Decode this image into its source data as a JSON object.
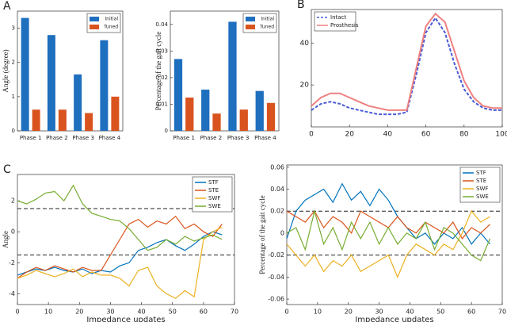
{
  "chart_data": [
    {
      "type": "bar",
      "panel_label": "A",
      "ylabel": "Angle (degree)",
      "categories": [
        "Phase 1",
        "Phase 2",
        "Phase 3",
        "Phase 4"
      ],
      "series": [
        {
          "name": "Initial",
          "color": "#1f6fbf",
          "values": [
            3.3,
            2.8,
            1.65,
            2.65
          ]
        },
        {
          "name": "Tuned",
          "color": "#d9531e",
          "values": [
            0.62,
            0.62,
            0.52,
            1.0
          ]
        }
      ],
      "ylim": [
        0,
        3.5
      ],
      "yticks": [
        0,
        1,
        2,
        3
      ],
      "legend": "top-right"
    },
    {
      "type": "bar",
      "ylabel": "Percentage of the gait cycle",
      "categories": [
        "Phase 1",
        "Phase 2",
        "Phase 3",
        "Phase 4"
      ],
      "series": [
        {
          "name": "Initial",
          "color": "#1f6fbf",
          "values": [
            0.027,
            0.0155,
            0.041,
            0.015
          ]
        },
        {
          "name": "Tuned",
          "color": "#d9531e",
          "values": [
            0.0125,
            0.0065,
            0.008,
            0.0105
          ]
        }
      ],
      "ylim": [
        0,
        0.045
      ],
      "yticks": [
        0,
        0.01,
        0.02,
        0.03,
        0.04
      ],
      "legend": "top-right"
    },
    {
      "type": "line",
      "panel_label": "B",
      "x": [
        0,
        5,
        10,
        15,
        20,
        25,
        30,
        35,
        40,
        45,
        50,
        55,
        60,
        65,
        70,
        75,
        80,
        85,
        90,
        95,
        100
      ],
      "series": [
        {
          "name": "Intact",
          "color": "#4a5bd4",
          "dashed": true,
          "values": [
            8,
            11,
            12,
            11,
            9,
            8,
            7,
            6,
            6,
            6,
            7,
            25,
            45,
            52,
            45,
            30,
            18,
            12,
            9,
            8,
            8
          ]
        },
        {
          "name": "Prosthesis",
          "color": "#f08080",
          "values": [
            10,
            14,
            16,
            16,
            14,
            12,
            10,
            9,
            8,
            8,
            8,
            28,
            48,
            54,
            50,
            36,
            22,
            14,
            10,
            9,
            9
          ]
        }
      ],
      "xlim": [
        0,
        100
      ],
      "xticks": [
        0,
        20,
        40,
        60,
        80,
        100
      ],
      "ylim": [
        0,
        56
      ],
      "yticks": [
        20,
        40
      ],
      "legend": "top-left"
    },
    {
      "type": "line",
      "panel_label": "C",
      "xlabel": "Impedance updates",
      "ylabel": "Angle",
      "x": [
        0,
        3,
        6,
        9,
        12,
        15,
        18,
        21,
        24,
        27,
        30,
        33,
        36,
        39,
        42,
        45,
        48,
        51,
        54,
        57,
        60,
        63,
        66
      ],
      "series": [
        {
          "name": "STF",
          "color": "#0072bd",
          "values": [
            -2.8,
            -2.6,
            -2.4,
            -2.5,
            -2.3,
            -2.5,
            -2.6,
            -2.4,
            -2.7,
            -2.5,
            -2.6,
            -2.2,
            -2.0,
            -1.2,
            -1.0,
            -0.7,
            -0.5,
            -0.9,
            -1.2,
            -0.8,
            -0.3,
            0.0,
            -0.2
          ]
        },
        {
          "name": "STE",
          "color": "#d95319",
          "values": [
            -3,
            -2.6,
            -2.3,
            -2.5,
            -2.2,
            -2.4,
            -2.6,
            -2.3,
            -2.5,
            -2.5,
            -1.5,
            -0.5,
            0.5,
            0.8,
            0.3,
            0.7,
            0.5,
            1.0,
            0.2,
            0.5,
            0.0,
            -0.3,
            0.5
          ]
        },
        {
          "name": "SWF",
          "color": "#edb120",
          "values": [
            -3.0,
            -2.8,
            -2.5,
            -2.7,
            -2.9,
            -2.7,
            -2.4,
            -2.9,
            -2.6,
            -2.8,
            -2.8,
            -3.0,
            -3.5,
            -2.5,
            -2.3,
            -3.5,
            -4.0,
            -4.3,
            -3.8,
            -4.2,
            -0.5,
            0.0,
            0.3
          ]
        },
        {
          "name": "SWE",
          "color": "#77ac30",
          "values": [
            2.0,
            1.8,
            2.1,
            2.5,
            2.6,
            2.0,
            3.0,
            1.8,
            1.2,
            1.0,
            0.8,
            0.7,
            0.2,
            -0.5,
            -1.2,
            -1.0,
            -0.5,
            -0.8,
            -0.3,
            -0.6,
            -0.4,
            -0.2,
            -0.5
          ]
        }
      ],
      "hlines": [
        1.5,
        -1.5
      ],
      "xlim": [
        0,
        70
      ],
      "xticks": [
        0,
        10,
        20,
        30,
        40,
        50,
        60,
        70
      ],
      "ylim": [
        -4.7,
        3.7
      ],
      "yticks": [
        -4,
        -2,
        0,
        2
      ],
      "legend": "top-right"
    },
    {
      "type": "line",
      "xlabel": "Impedance updates",
      "ylabel": "Percentage of the gait cycle",
      "x": [
        0,
        3,
        6,
        9,
        12,
        15,
        18,
        21,
        24,
        27,
        30,
        33,
        36,
        39,
        42,
        45,
        48,
        51,
        54,
        57,
        60,
        63,
        66
      ],
      "series": [
        {
          "name": "STF",
          "color": "#0072bd",
          "values": [
            -0.005,
            0.02,
            0.03,
            0.035,
            0.04,
            0.028,
            0.045,
            0.03,
            0.038,
            0.025,
            0.04,
            0.03,
            0.015,
            0.005,
            -0.005,
            0.0,
            -0.01,
            0.0,
            -0.005,
            0.005,
            -0.01,
            0.0,
            -0.01
          ]
        },
        {
          "name": "STE",
          "color": "#d95319",
          "values": [
            0.02,
            0.015,
            0.01,
            0.02,
            0.005,
            0.015,
            0.01,
            0.0,
            0.02,
            0.015,
            0.01,
            0.005,
            0.015,
            0.005,
            0.0,
            0.01,
            0.005,
            0.0,
            0.01,
            -0.005,
            0.005,
            0.0,
            0.008
          ]
        },
        {
          "name": "SWF",
          "color": "#edb120",
          "values": [
            -0.01,
            -0.02,
            -0.03,
            -0.02,
            -0.035,
            -0.025,
            -0.03,
            -0.02,
            -0.035,
            -0.03,
            -0.025,
            -0.02,
            -0.04,
            -0.02,
            -0.01,
            -0.015,
            -0.02,
            -0.01,
            -0.015,
            0.0,
            0.02,
            0.01,
            0.015
          ]
        },
        {
          "name": "SWE",
          "color": "#77ac30",
          "values": [
            0.0,
            0.005,
            -0.015,
            0.02,
            -0.01,
            0.005,
            -0.015,
            0.01,
            -0.005,
            0.01,
            -0.01,
            0.005,
            -0.01,
            0.0,
            -0.005,
            0.01,
            -0.015,
            0.005,
            0.0,
            -0.01,
            -0.02,
            -0.025,
            -0.005
          ]
        }
      ],
      "hlines": [
        0.02,
        -0.02
      ],
      "xlim": [
        0,
        70
      ],
      "xticks": [
        0,
        10,
        20,
        30,
        40,
        50,
        60,
        70
      ],
      "ylim": [
        -0.065,
        0.062
      ],
      "yticks": [
        -0.06,
        -0.04,
        -0.02,
        0,
        0.02,
        0.04,
        0.06
      ],
      "legend": "top-right"
    }
  ]
}
